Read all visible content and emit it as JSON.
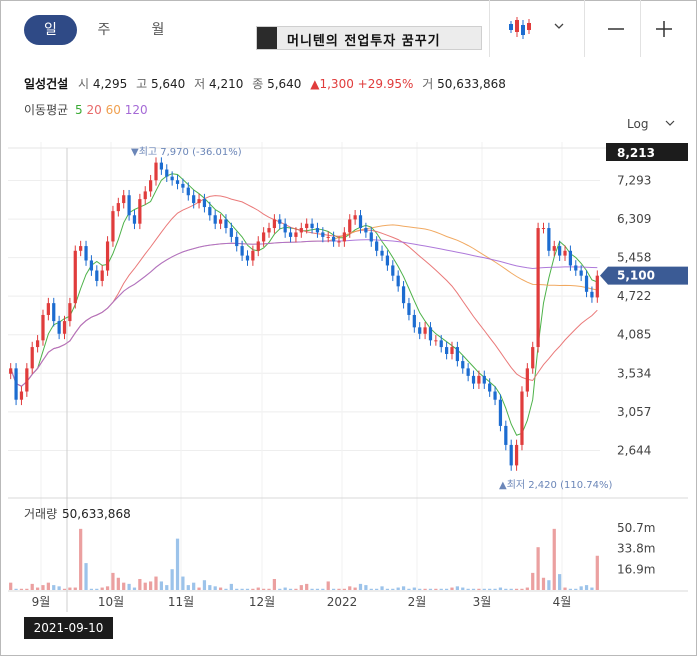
{
  "tabs": [
    {
      "label": "일",
      "active": true
    },
    {
      "label": "주",
      "active": false
    },
    {
      "label": "월",
      "active": false
    }
  ],
  "banner_text": "머니텐의 전업투자 꿈꾸기",
  "toolbar": {
    "candle_icon": "candlestick-chart-icon",
    "dropdown_icon": "chevron-down-icon",
    "minus_icon": "minus-icon",
    "plus_icon": "plus-icon"
  },
  "stock": {
    "name": "일성건설",
    "open_label": "시",
    "open": "4,295",
    "high_label": "고",
    "high": "5,640",
    "low_label": "저",
    "low": "4,210",
    "close_label": "종",
    "close": "5,640",
    "change": "▲1,300 +29.95%",
    "volume_label": "거",
    "volume": "50,633,868"
  },
  "moving_average": {
    "label": "이동평균",
    "periods": [
      "5",
      "20",
      "60",
      "120"
    ]
  },
  "scale_button": "Log",
  "colors": {
    "up": "#e03c3c",
    "down": "#1c6cd0",
    "ma5": "#3aaa35",
    "ma20": "#e86a6a",
    "ma60": "#f0a050",
    "ma120": "#a56ad6",
    "accent": "#2f4a86"
  },
  "chart_data": {
    "type": "candlestick",
    "y_scale": "log",
    "y_ticks": [
      "7,293",
      "6,309",
      "5,458",
      "4,722",
      "4,085",
      "3,534",
      "3,057",
      "2,644"
    ],
    "y_tick_values": [
      7293,
      6309,
      5458,
      4722,
      4085,
      3534,
      3057,
      2644
    ],
    "top_price_tag": "8,213",
    "current_price_tag": "5,100",
    "high_annotation": "▼최고 7,970 (-36.01%)",
    "low_annotation": "▲최저 2,420 (110.74%)",
    "x_labels": [
      "9월",
      "10월",
      "11월",
      "12월",
      "2022",
      "2월",
      "3월",
      "4월"
    ],
    "volume_label": "거래량",
    "volume_value": "50,633,868",
    "volume_ticks": [
      "50.7m",
      "33.8m",
      "16.9m"
    ],
    "volume_tick_values": [
      50.7,
      33.8,
      16.9
    ],
    "crosshair_date": "2021-09-10",
    "close_path": [
      3600,
      3200,
      3300,
      3600,
      3900,
      4000,
      4400,
      4600,
      4300,
      4100,
      4300,
      4600,
      5600,
      5700,
      5400,
      5200,
      5000,
      5200,
      5800,
      6500,
      6700,
      6900,
      6400,
      6200,
      6800,
      7000,
      7300,
      7800,
      7600,
      7400,
      7300,
      7200,
      7100,
      6900,
      6700,
      6800,
      6600,
      6400,
      6200,
      6300,
      6100,
      5900,
      5700,
      5500,
      5400,
      5600,
      5800,
      6000,
      6100,
      6300,
      6200,
      6000,
      5900,
      6000,
      6100,
      6200,
      6100,
      6000,
      5900,
      5900,
      5800,
      5800,
      6000,
      6300,
      6400,
      6100,
      6000,
      5800,
      5600,
      5500,
      5300,
      5100,
      4900,
      4600,
      4400,
      4200,
      4100,
      4200,
      4000,
      4000,
      3900,
      3800,
      3900,
      3700,
      3600,
      3500,
      3400,
      3500,
      3400,
      3300,
      3200,
      2900,
      2700,
      2500,
      2700,
      3300,
      3600,
      3900,
      6100,
      6100,
      5600,
      5700,
      5500,
      5600,
      5300,
      5200,
      5100,
      4800,
      4700,
      5100
    ],
    "volume_values": [
      6,
      1,
      1,
      1,
      5,
      2,
      4,
      6,
      4,
      3,
      1,
      2,
      2,
      50,
      22,
      1,
      1,
      2,
      3,
      14,
      10,
      6,
      5,
      2,
      9,
      6,
      7,
      11,
      7,
      4,
      17,
      42,
      11,
      4,
      6,
      2,
      8,
      4,
      3,
      2,
      1,
      5,
      1,
      1,
      1,
      1,
      2,
      1,
      1,
      9,
      1,
      2,
      1,
      1,
      4,
      5,
      1,
      1,
      1,
      7,
      1,
      1,
      1,
      3,
      2,
      5,
      4,
      1,
      1,
      3,
      1,
      1,
      2,
      3,
      1,
      2,
      1,
      1,
      1,
      1,
      1,
      1,
      2,
      3,
      2,
      1,
      1,
      1,
      1,
      1,
      1,
      2,
      1,
      1,
      1,
      1,
      2,
      14,
      35,
      10,
      8,
      50,
      13,
      2,
      1,
      1,
      3,
      4,
      2,
      28
    ]
  }
}
